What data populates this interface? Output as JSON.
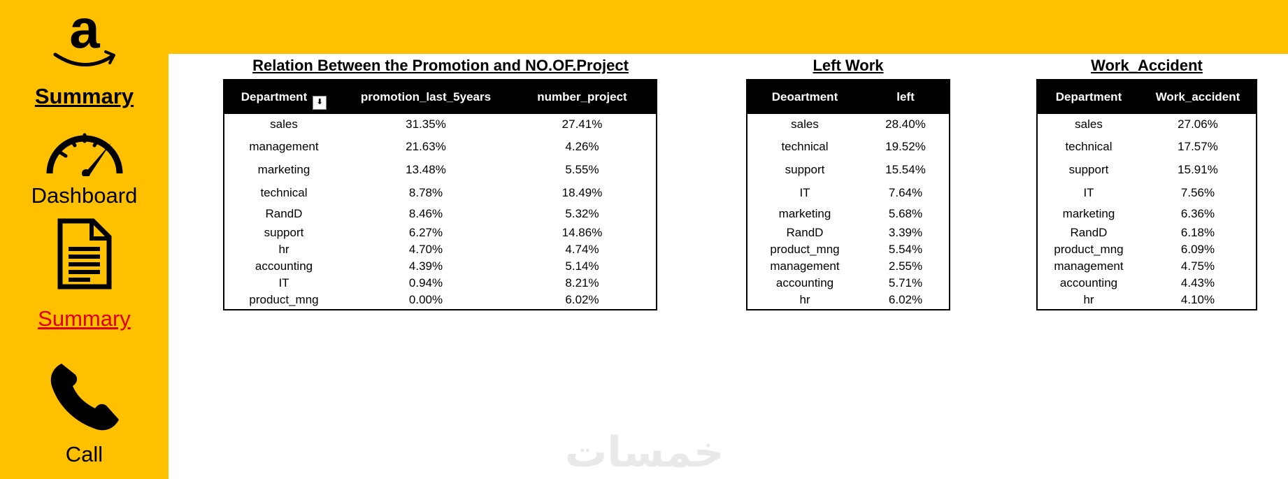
{
  "sidebar": {
    "logo_icon": "amazon-logo-icon",
    "items": [
      {
        "label": "Summary",
        "style": "bold-underline",
        "icon": "amazon-logo-icon"
      },
      {
        "label": "Dashboard",
        "style": "plain",
        "icon": "speedometer-icon"
      },
      {
        "label": "Summary",
        "style": "red-underline",
        "color": "#E00000",
        "icon": "document-icon"
      },
      {
        "label": "Call",
        "style": "plain",
        "icon": "phone-icon"
      }
    ],
    "background": "#FFC000"
  },
  "tables": [
    {
      "title": "Relation Between the Promotion and NO.OF.Project",
      "columns": [
        "Department",
        "promotion_last_5years",
        "number_project"
      ],
      "filter_icon": "sort-filter-icon",
      "rows": [
        [
          "sales",
          "31.35%",
          "27.41%"
        ],
        [
          "management",
          "21.63%",
          "4.26%"
        ],
        [
          "marketing",
          "13.48%",
          "5.55%"
        ],
        [
          "technical",
          "8.78%",
          "18.49%"
        ],
        [
          "RandD",
          "8.46%",
          "5.32%"
        ],
        [
          "support",
          "6.27%",
          "14.86%"
        ],
        [
          "hr",
          "4.70%",
          "4.74%"
        ],
        [
          "accounting",
          "4.39%",
          "5.14%"
        ],
        [
          "IT",
          "0.94%",
          "8.21%"
        ],
        [
          "product_mng",
          "0.00%",
          "6.02%"
        ]
      ]
    },
    {
      "title": "Left Work",
      "columns": [
        "Deoartment",
        "left"
      ],
      "rows": [
        [
          "sales",
          "28.40%"
        ],
        [
          "technical",
          "19.52%"
        ],
        [
          "support",
          "15.54%"
        ],
        [
          "IT",
          "7.64%"
        ],
        [
          "marketing",
          "5.68%"
        ],
        [
          "RandD",
          "3.39%"
        ],
        [
          "product_mng",
          "5.54%"
        ],
        [
          "management",
          "2.55%"
        ],
        [
          "accounting",
          "5.71%"
        ],
        [
          "hr",
          "6.02%"
        ]
      ]
    },
    {
      "title": "Work_Accident",
      "columns": [
        "Department",
        "Work_accident"
      ],
      "rows": [
        [
          "sales",
          "27.06%"
        ],
        [
          "technical",
          "17.57%"
        ],
        [
          "support",
          "15.91%"
        ],
        [
          "IT",
          "7.56%"
        ],
        [
          "marketing",
          "6.36%"
        ],
        [
          "RandD",
          "6.18%"
        ],
        [
          "product_mng",
          "6.09%"
        ],
        [
          "management",
          "4.75%"
        ],
        [
          "accounting",
          "4.43%"
        ],
        [
          "hr",
          "4.10%"
        ]
      ]
    }
  ],
  "watermark": "خمسات",
  "colors": {
    "accent": "#FFC000",
    "header": "#000000",
    "link_red": "#E00000"
  }
}
